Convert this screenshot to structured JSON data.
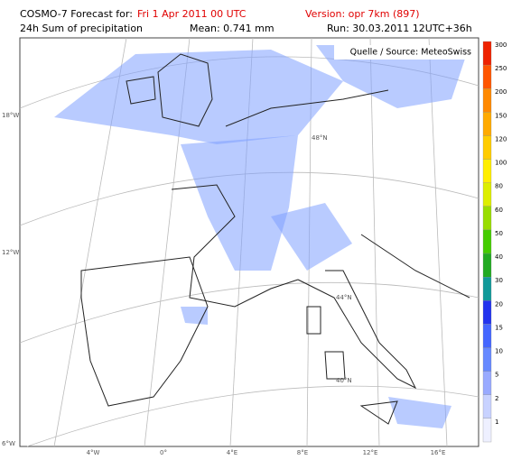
{
  "header": {
    "product": "COSMO-7 Forecast for:",
    "valid": "Fri 1 Apr 2011 00 UTC",
    "version": "Version: opr 7km (897)",
    "field": "24h Sum of precipitation",
    "mean": "Mean: 0.741 mm",
    "run": "Run: 30.03.2011 12UTC+36h"
  },
  "source": "Quelle / Source: MeteoSwiss",
  "lon_labels": [
    "4°W",
    "0°",
    "4°E",
    "8°E",
    "12°E",
    "16°E"
  ],
  "lat_labels_left": [
    "18°W",
    "12°W",
    "6°W"
  ],
  "lat_labels_inner": [
    "48°N",
    "44°N",
    "40°N"
  ],
  "legend": [
    {
      "value": 300,
      "color": "#ee2200"
    },
    {
      "value": 250,
      "color": "#ff5500"
    },
    {
      "value": 200,
      "color": "#ff8800"
    },
    {
      "value": 150,
      "color": "#ffaa00"
    },
    {
      "value": 120,
      "color": "#ffcc00"
    },
    {
      "value": 100,
      "color": "#ffee00"
    },
    {
      "value": 80,
      "color": "#ddee00"
    },
    {
      "value": 60,
      "color": "#99dd00"
    },
    {
      "value": 50,
      "color": "#44cc00"
    },
    {
      "value": 40,
      "color": "#22aa22"
    },
    {
      "value": 30,
      "color": "#119999"
    },
    {
      "value": 20,
      "color": "#2233ee"
    },
    {
      "value": 15,
      "color": "#4466ff"
    },
    {
      "value": 10,
      "color": "#6688ff"
    },
    {
      "value": 5,
      "color": "#99aaff"
    },
    {
      "value": 2,
      "color": "#c8d2ff"
    },
    {
      "value": 1,
      "color": "#eef0ff"
    }
  ]
}
